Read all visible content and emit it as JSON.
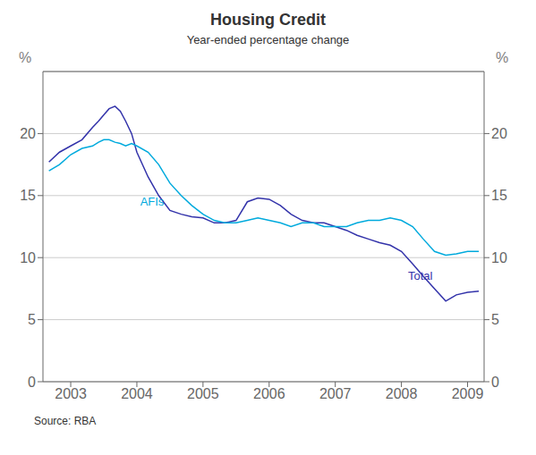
{
  "chart_data": {
    "type": "line",
    "title": "Housing Credit",
    "subtitle": "Year-ended percentage change",
    "source": "Source: RBA",
    "ylabel": "%",
    "y2label": "%",
    "xlim": [
      2002.58,
      2009.25
    ],
    "xticks": [
      2003,
      2004,
      2005,
      2006,
      2007,
      2008,
      2009
    ],
    "ylim": [
      0,
      25
    ],
    "yticks": [
      0,
      5,
      10,
      15,
      20
    ],
    "y2lim": [
      0,
      25
    ],
    "y2ticks": [
      0,
      5,
      10,
      15,
      20
    ],
    "grid": true,
    "x": [
      2002.67,
      2002.83,
      2003.0,
      2003.17,
      2003.33,
      2003.42,
      2003.5,
      2003.58,
      2003.67,
      2003.75,
      2003.83,
      2003.92,
      2004.0,
      2004.17,
      2004.33,
      2004.5,
      2004.67,
      2004.83,
      2005.0,
      2005.17,
      2005.33,
      2005.5,
      2005.67,
      2005.83,
      2006.0,
      2006.17,
      2006.33,
      2006.5,
      2006.67,
      2006.83,
      2007.0,
      2007.17,
      2007.33,
      2007.5,
      2007.67,
      2007.83,
      2008.0,
      2008.17,
      2008.33,
      2008.5,
      2008.67,
      2008.83,
      2009.0,
      2009.17
    ],
    "series": [
      {
        "name": "Total",
        "color": "#3333aa",
        "values": [
          17.7,
          18.5,
          19.0,
          19.5,
          20.5,
          21.0,
          21.5,
          22.0,
          22.2,
          21.8,
          21.0,
          20.0,
          18.5,
          16.5,
          15.0,
          13.8,
          13.5,
          13.3,
          13.2,
          12.8,
          12.8,
          13.0,
          14.5,
          14.8,
          14.7,
          14.2,
          13.5,
          13.0,
          12.8,
          12.8,
          12.5,
          12.2,
          11.8,
          11.5,
          11.2,
          11.0,
          10.5,
          9.5,
          8.5,
          7.5,
          6.5,
          7.0,
          7.2,
          7.3
        ]
      },
      {
        "name": "AFIs",
        "color": "#00aadd",
        "values": [
          17.0,
          17.5,
          18.3,
          18.8,
          19.0,
          19.3,
          19.5,
          19.5,
          19.3,
          19.2,
          19.0,
          19.2,
          19.0,
          18.5,
          17.5,
          16.0,
          15.0,
          14.2,
          13.5,
          13.0,
          12.8,
          12.8,
          13.0,
          13.2,
          13.0,
          12.8,
          12.5,
          12.8,
          12.8,
          12.5,
          12.5,
          12.5,
          12.8,
          13.0,
          13.0,
          13.2,
          13.0,
          12.5,
          11.5,
          10.5,
          10.2,
          10.3,
          10.5,
          10.5
        ]
      }
    ],
    "annotations": [
      {
        "text": "AFIs",
        "x": 2004.05,
        "y": 14.2,
        "color": "#00aadd"
      },
      {
        "text": "Total",
        "x": 2008.1,
        "y": 8.2,
        "color": "#3333aa"
      }
    ]
  }
}
